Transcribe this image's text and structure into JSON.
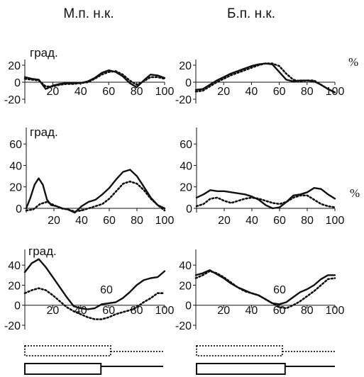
{
  "header": {
    "left": "М.п. н.к.",
    "right": "Б.п. н.к."
  },
  "unit_label": "град.",
  "percent_label": "%",
  "chart_data": [
    {
      "type": "line",
      "id": "r1c1",
      "unit_label": "град.",
      "xlim": [
        0,
        100
      ],
      "ylim": [
        -20,
        20
      ],
      "xticks": [
        20,
        40,
        60,
        80,
        100
      ],
      "yticks": [
        20,
        0,
        -20
      ],
      "series": [
        {
          "style": "solid",
          "x": [
            0,
            5,
            10,
            15,
            20,
            25,
            30,
            35,
            40,
            45,
            50,
            55,
            60,
            65,
            70,
            75,
            80,
            85,
            90,
            95,
            100
          ],
          "y": [
            6,
            4,
            3,
            -8,
            -4,
            -2,
            -1,
            -1,
            -1,
            1,
            5,
            11,
            14,
            12,
            7,
            -1,
            -6,
            2,
            9,
            8,
            5
          ]
        },
        {
          "style": "dotted",
          "x": [
            0,
            5,
            10,
            15,
            20,
            25,
            30,
            35,
            40,
            45,
            50,
            55,
            60,
            65,
            70,
            75,
            80,
            85,
            90,
            95,
            100
          ],
          "y": [
            4,
            3,
            2,
            -5,
            -5,
            -3,
            -2,
            -2,
            -1,
            0,
            4,
            9,
            12,
            13,
            9,
            2,
            -3,
            1,
            6,
            6,
            4
          ]
        }
      ]
    },
    {
      "type": "line",
      "id": "r1c2",
      "xlim": [
        0,
        100
      ],
      "ylim": [
        -20,
        20
      ],
      "xticks": [
        20,
        40,
        60,
        80,
        100
      ],
      "yticks": [
        20,
        0,
        -20
      ],
      "series": [
        {
          "style": "solid",
          "x": [
            0,
            5,
            10,
            15,
            20,
            25,
            30,
            35,
            40,
            45,
            50,
            55,
            60,
            65,
            70,
            75,
            80,
            85,
            90,
            95,
            100
          ],
          "y": [
            -9,
            -8,
            -3,
            2,
            6,
            10,
            13,
            16,
            19,
            21,
            22,
            21,
            12,
            3,
            1,
            2,
            2,
            1,
            -3,
            -8,
            -12
          ]
        },
        {
          "style": "dotted",
          "x": [
            0,
            5,
            10,
            15,
            20,
            25,
            30,
            35,
            40,
            45,
            50,
            55,
            60,
            65,
            70,
            75,
            80,
            85,
            90,
            95,
            100
          ],
          "y": [
            -11,
            -10,
            -5,
            0,
            4,
            8,
            11,
            14,
            17,
            20,
            22,
            22,
            19,
            10,
            3,
            1,
            2,
            2,
            -3,
            -8,
            -12
          ]
        }
      ]
    },
    {
      "type": "line",
      "id": "r2c1",
      "unit_label": "град.",
      "xlim": [
        0,
        100
      ],
      "ylim": [
        0,
        70
      ],
      "xticks": [
        20,
        40,
        60,
        80,
        100
      ],
      "yticks": [
        60,
        40,
        20,
        0
      ],
      "series": [
        {
          "style": "solid",
          "x": [
            0,
            3,
            6,
            9,
            12,
            15,
            18,
            22,
            26,
            30,
            35,
            40,
            45,
            50,
            55,
            60,
            65,
            70,
            75,
            80,
            85,
            90,
            95,
            100
          ],
          "y": [
            0,
            10,
            22,
            28,
            22,
            8,
            3,
            2,
            0,
            -1,
            -4,
            2,
            6,
            8,
            13,
            19,
            27,
            34,
            36,
            30,
            20,
            10,
            3,
            0
          ]
        },
        {
          "style": "dotted",
          "x": [
            0,
            5,
            10,
            15,
            20,
            25,
            30,
            35,
            40,
            45,
            50,
            55,
            60,
            65,
            70,
            75,
            80,
            85,
            90,
            95,
            100
          ],
          "y": [
            -2,
            -1,
            4,
            6,
            3,
            0,
            -1,
            -3,
            -2,
            0,
            2,
            4,
            9,
            16,
            23,
            25,
            23,
            17,
            9,
            3,
            -2
          ]
        }
      ]
    },
    {
      "type": "line",
      "id": "r2c2",
      "xlim": [
        0,
        100
      ],
      "ylim": [
        0,
        70
      ],
      "xticks": [
        20,
        40,
        60,
        80,
        100
      ],
      "yticks": [
        60,
        40,
        20,
        0
      ],
      "series": [
        {
          "style": "solid",
          "x": [
            0,
            5,
            10,
            15,
            20,
            25,
            30,
            35,
            40,
            45,
            50,
            55,
            60,
            65,
            70,
            75,
            80,
            85,
            90,
            95,
            100
          ],
          "y": [
            10,
            13,
            17,
            16,
            16,
            15,
            14,
            13,
            11,
            8,
            3,
            0,
            1,
            6,
            12,
            13,
            15,
            19,
            18,
            13,
            9
          ]
        },
        {
          "style": "dotted",
          "x": [
            0,
            5,
            10,
            15,
            20,
            25,
            30,
            35,
            40,
            45,
            50,
            55,
            60,
            65,
            70,
            75,
            80,
            85,
            90,
            95,
            100
          ],
          "y": [
            2,
            4,
            9,
            10,
            7,
            5,
            7,
            9,
            10,
            9,
            7,
            5,
            4,
            6,
            10,
            12,
            12,
            8,
            4,
            2,
            1
          ]
        }
      ]
    },
    {
      "type": "line",
      "id": "r3c1",
      "unit_label": "град.",
      "xlim": [
        0,
        100
      ],
      "ylim": [
        -20,
        50
      ],
      "xticks": [
        20,
        40,
        60,
        80,
        100
      ],
      "yticks": [
        40,
        20,
        0,
        -20
      ],
      "annotation": "60",
      "series": [
        {
          "style": "solid",
          "x": [
            0,
            5,
            10,
            15,
            20,
            25,
            30,
            35,
            40,
            45,
            50,
            55,
            60,
            65,
            70,
            75,
            80,
            85,
            90,
            95,
            100
          ],
          "y": [
            33,
            42,
            46,
            38,
            28,
            18,
            8,
            -1,
            -3,
            -4,
            -3,
            1,
            2,
            3,
            7,
            13,
            20,
            25,
            27,
            28,
            34
          ]
        },
        {
          "style": "dotted",
          "x": [
            0,
            5,
            10,
            15,
            20,
            25,
            30,
            35,
            40,
            45,
            50,
            55,
            60,
            65,
            70,
            75,
            80,
            85,
            90,
            95,
            100
          ],
          "y": [
            12,
            15,
            17,
            15,
            10,
            4,
            -2,
            -6,
            -9,
            -12,
            -14,
            -14,
            -12,
            -9,
            -7,
            -5,
            -2,
            3,
            7,
            12,
            12
          ]
        }
      ]
    },
    {
      "type": "line",
      "id": "r3c2",
      "xlim": [
        0,
        100
      ],
      "ylim": [
        -20,
        50
      ],
      "xticks": [
        20,
        40,
        60,
        80,
        100
      ],
      "yticks": [
        40,
        20,
        0,
        -20
      ],
      "annotation": "60",
      "series": [
        {
          "style": "solid",
          "x": [
            0,
            5,
            10,
            15,
            20,
            25,
            30,
            35,
            40,
            45,
            50,
            55,
            60,
            65,
            70,
            75,
            80,
            85,
            90,
            95,
            100
          ],
          "y": [
            30,
            32,
            35,
            31,
            27,
            22,
            18,
            15,
            12,
            10,
            6,
            2,
            1,
            3,
            8,
            13,
            16,
            20,
            26,
            30,
            30
          ]
        },
        {
          "style": "dotted",
          "x": [
            0,
            5,
            10,
            15,
            20,
            25,
            30,
            35,
            40,
            45,
            50,
            55,
            60,
            65,
            70,
            75,
            80,
            85,
            90,
            95,
            100
          ],
          "y": [
            27,
            30,
            34,
            32,
            28,
            23,
            18,
            14,
            12,
            10,
            6,
            2,
            -2,
            -3,
            0,
            4,
            9,
            14,
            20,
            26,
            27
          ]
        }
      ]
    }
  ],
  "phase_bars": [
    {
      "id": "left",
      "dotted_end_pct": 62,
      "solid_end_pct": 55
    },
    {
      "id": "right",
      "dotted_end_pct": 62,
      "solid_end_pct": 64
    }
  ]
}
